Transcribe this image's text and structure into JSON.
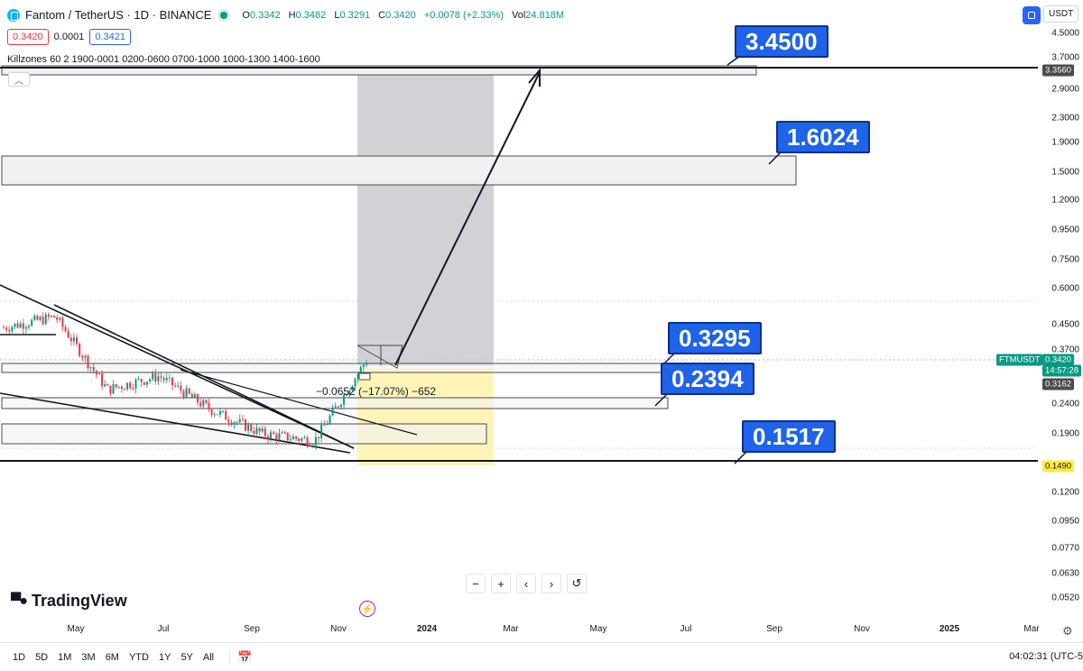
{
  "header": {
    "title": "Fantom / TetherUS · 1D · BINANCE",
    "ohlc": {
      "o_label": "O",
      "o": "0.3342",
      "h_label": "H",
      "h": "0.3482",
      "l_label": "L",
      "l": "0.3291",
      "c_label": "C",
      "c": "0.3420",
      "change": "+0.0078 (+2.33%)",
      "vol_label": "Vol",
      "vol": "24.818M"
    },
    "sell_price": "0.3420",
    "spread": "0.0001",
    "buy_price": "0.3421"
  },
  "indicator": {
    "label": "Killzones 60 2 1900-0001 0200-0600 0700-1000 1000-1300 1400-1600"
  },
  "currency_button": "USDT",
  "annotations": {
    "target_1": "3.4500",
    "target_2": "1.6024",
    "level_1": "0.3295",
    "level_2": "0.2394",
    "level_3": "0.1517",
    "measure": "−0.0652 (−17.07%) −652"
  },
  "price_axis": {
    "ticks": [
      "4.5000",
      "3.7000",
      "2.9000",
      "2.3000",
      "1.9000",
      "1.5000",
      "1.2000",
      "0.9500",
      "0.7500",
      "0.6000",
      "0.4500",
      "0.3700",
      "0.2400",
      "0.1900",
      "0.1200",
      "0.0950",
      "0.0770",
      "0.0630",
      "0.0520"
    ],
    "label_3560": "3.3560",
    "symbol_label": "FTMUSDT",
    "current_price": "0.3420",
    "countdown": "14:57:28",
    "label_3162": "0.3162",
    "label_1490": "0.1490"
  },
  "time_axis": {
    "ticks": [
      "May",
      "Jul",
      "Sep",
      "Nov",
      "2024",
      "Mar",
      "May",
      "Jul",
      "Sep",
      "Nov",
      "2025",
      "Mar"
    ]
  },
  "brand": "TradingView",
  "zoom_buttons": {
    "minus": "−",
    "plus": "+",
    "left": "‹",
    "right": "›",
    "reset": "↺"
  },
  "ranges": [
    "1D",
    "5D",
    "1M",
    "3M",
    "6M",
    "YTD",
    "1Y",
    "5Y",
    "All"
  ],
  "clock": "04:02:31 (UTC-5",
  "colors": {
    "up": "#089981",
    "down": "#f23645",
    "accent": "#2962ff",
    "badge": "#1e63e9",
    "yellow": "#fff3b0",
    "grey": "#cfd0d4"
  },
  "chart_data": {
    "type": "candlestick",
    "symbol": "FTMUSDT",
    "timeframe": "1D",
    "y_scale": "log",
    "ylim": [
      0.052,
      4.5
    ],
    "last_close": 0.342,
    "horizontal_levels": [
      3.356,
      3.45,
      1.6024,
      0.3295,
      0.2394,
      0.1517,
      0.149
    ],
    "price_series": {
      "name": "FTMUSDT",
      "x": [
        "2023-04",
        "2023-05",
        "2023-06",
        "2023-07",
        "2023-08",
        "2023-09",
        "2023-10",
        "2023-11"
      ],
      "values": [
        0.44,
        0.48,
        0.27,
        0.3,
        0.23,
        0.19,
        0.18,
        0.34
      ]
    },
    "projection": {
      "from": 0.33,
      "to": 3.45
    }
  }
}
